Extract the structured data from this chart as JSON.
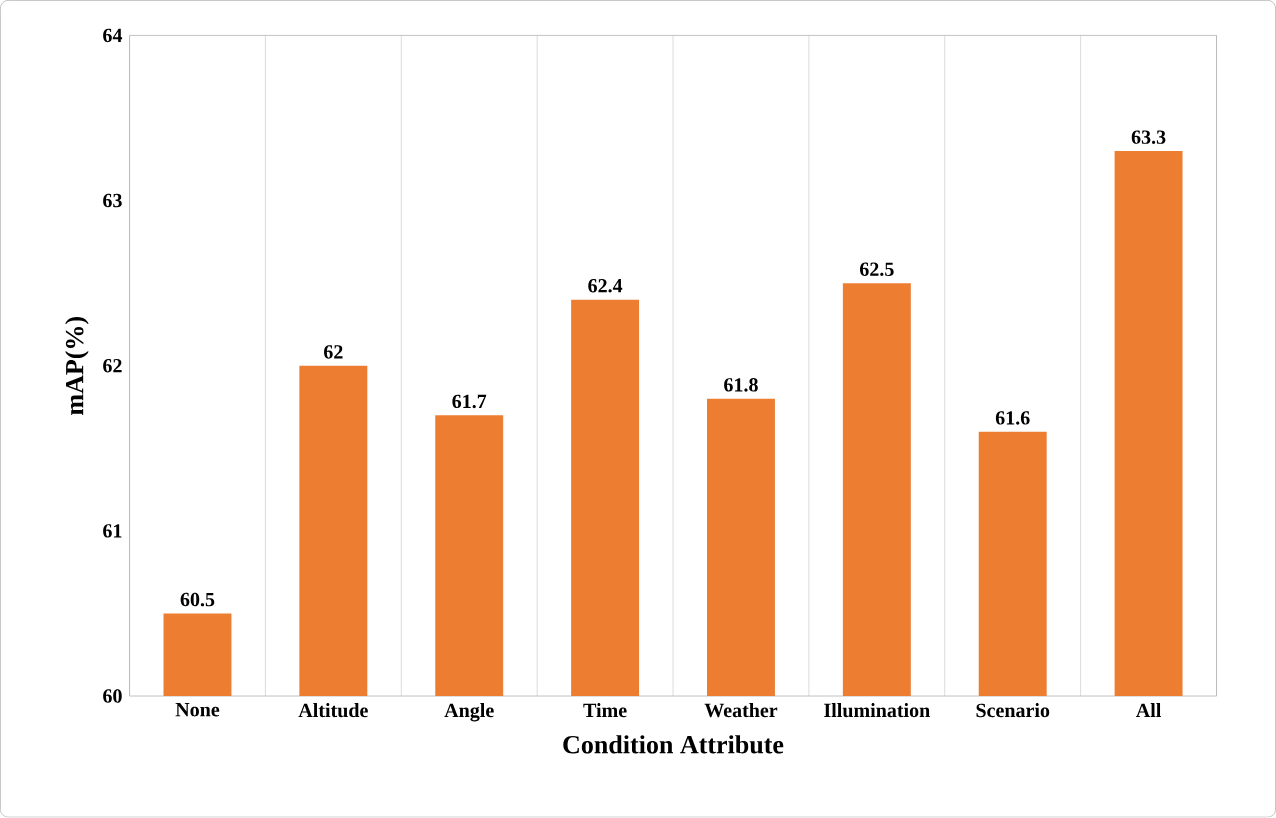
{
  "chart_data": {
    "type": "bar",
    "xlabel": "Condition Attribute",
    "ylabel": "mAP(%)",
    "categories": [
      "None",
      "Altitude",
      "Angle",
      "Time",
      "Weather",
      "Illumination",
      "Scenario",
      "All"
    ],
    "values": [
      60.5,
      62,
      61.7,
      62.4,
      61.8,
      62.5,
      61.6,
      63.3
    ],
    "color": "#ed7d31",
    "ylim": [
      60,
      64
    ],
    "yticks": [
      60,
      61,
      62,
      63,
      64
    ],
    "grid": "x",
    "data_labels": true
  }
}
